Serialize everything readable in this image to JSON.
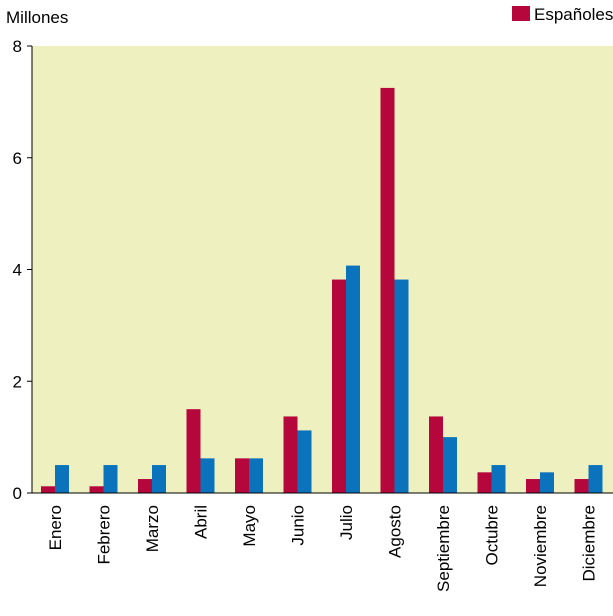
{
  "chart_data": {
    "type": "bar",
    "ylabel": "Millones",
    "ylim": [
      0,
      8
    ],
    "yticks": [
      0,
      2,
      4,
      6,
      8
    ],
    "grid": false,
    "legend_position": "top-right",
    "plot_background": "#eef0bf",
    "categories": [
      "Enero",
      "Febrero",
      "Marzo",
      "Abril",
      "Mayo",
      "Junio",
      "Julio",
      "Agosto",
      "Septiembre",
      "Octubre",
      "Noviembre",
      "Diciembre"
    ],
    "series": [
      {
        "name": "Españoles",
        "color": "#b5073c",
        "values": [
          0.12,
          0.12,
          0.25,
          1.5,
          0.62,
          1.37,
          3.82,
          7.25,
          1.37,
          0.37,
          0.25,
          0.25
        ]
      },
      {
        "color": "#0a73bb",
        "values": [
          0.5,
          0.5,
          0.5,
          0.62,
          0.62,
          1.12,
          4.07,
          3.82,
          1.0,
          0.5,
          0.37,
          0.5
        ]
      }
    ]
  }
}
